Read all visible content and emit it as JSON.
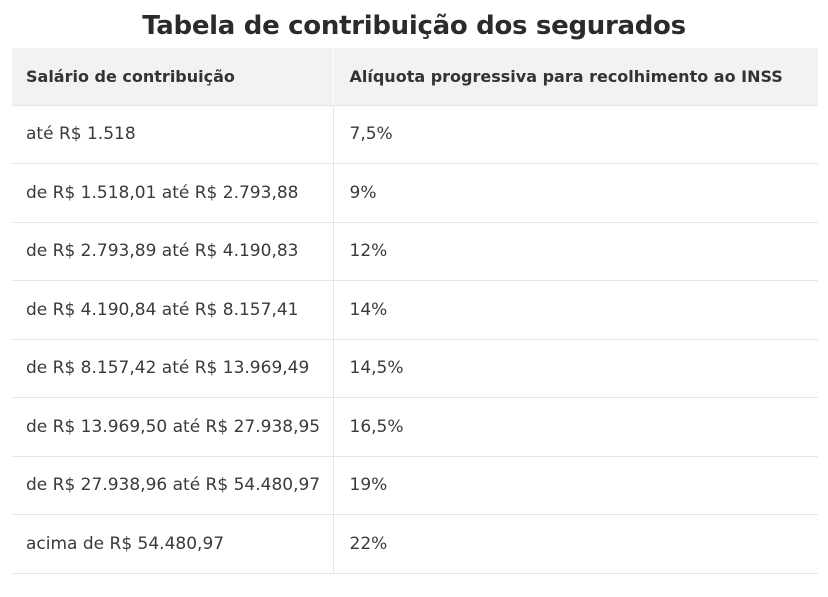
{
  "title": "Tabela de contribuição dos segurados",
  "table": {
    "headers": [
      "Salário de contribuição",
      "Alíquota progressiva para recolhimento ao INSS"
    ],
    "rows": [
      [
        "até R$ 1.518",
        "7,5%"
      ],
      [
        "de R$ 1.518,01 até R$ 2.793,88",
        "9%"
      ],
      [
        "de R$ 2.793,89 até R$ 4.190,83",
        "12%"
      ],
      [
        "de R$ 4.190,84 até R$ 8.157,41",
        "14%"
      ],
      [
        "de R$ 8.157,42 até R$ 13.969,49",
        "14,5%"
      ],
      [
        "de R$ 13.969,50 até R$ 27.938,95",
        "16,5%"
      ],
      [
        "de R$ 27.938,96 até R$ 54.480,97",
        "19%"
      ],
      [
        "acima de R$ 54.480,97",
        "22%"
      ]
    ]
  }
}
